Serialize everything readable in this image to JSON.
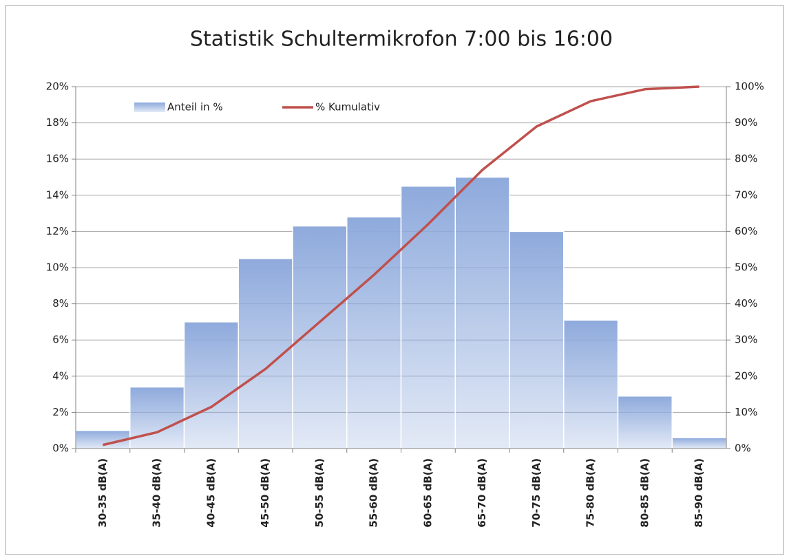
{
  "chart_data": {
    "type": "bar",
    "title": "Statistik Schultermikrofon 7:00 bis 16:00",
    "categories": [
      "30-35 dB(A)",
      "35-40 dB(A)",
      "40-45 dB(A)",
      "45-50 dB(A)",
      "50-55 dB(A)",
      "55-60 dB(A)",
      "60-65 dB(A)",
      "65-70 dB(A)",
      "70-75 dB(A)",
      "75-80 dB(A)",
      "80-85 dB(A)",
      "85-90 dB(A)"
    ],
    "series": [
      {
        "name": "Anteil in %",
        "type": "bar",
        "color": "#8eaadc",
        "values": [
          1.0,
          3.4,
          7.0,
          10.5,
          12.3,
          12.8,
          14.5,
          15.0,
          12.0,
          7.1,
          2.9,
          0.6
        ]
      },
      {
        "name": "% Kumulativ",
        "type": "line",
        "axis": "y2",
        "color": "#c0504d",
        "values": [
          1.0,
          4.5,
          11.5,
          22.0,
          35.0,
          48.0,
          62.0,
          77.0,
          89.0,
          96.0,
          99.3,
          100.0
        ]
      }
    ],
    "ylim": [
      0,
      20
    ],
    "yticks": [
      {
        "value": 0,
        "label": "0%"
      },
      {
        "value": 2,
        "label": "2%"
      },
      {
        "value": 4,
        "label": "4%"
      },
      {
        "value": 6,
        "label": "6%"
      },
      {
        "value": 8,
        "label": "8%"
      },
      {
        "value": 10,
        "label": "10%"
      },
      {
        "value": 12,
        "label": "12%"
      },
      {
        "value": 14,
        "label": "14%"
      },
      {
        "value": 16,
        "label": "16%"
      },
      {
        "value": 18,
        "label": "18%"
      },
      {
        "value": 20,
        "label": "20%"
      }
    ],
    "y2lim": [
      0,
      100
    ],
    "y2ticks": [
      {
        "value": 0,
        "label": "0%"
      },
      {
        "value": 10,
        "label": "10%"
      },
      {
        "value": 20,
        "label": "20%"
      },
      {
        "value": 30,
        "label": "30%"
      },
      {
        "value": 40,
        "label": "40%"
      },
      {
        "value": 50,
        "label": "50%"
      },
      {
        "value": 60,
        "label": "60%"
      },
      {
        "value": 70,
        "label": "70%"
      },
      {
        "value": 80,
        "label": "80%"
      },
      {
        "value": 90,
        "label": "90%"
      },
      {
        "value": 100,
        "label": "100%"
      }
    ],
    "grid": true,
    "legend": "top"
  }
}
